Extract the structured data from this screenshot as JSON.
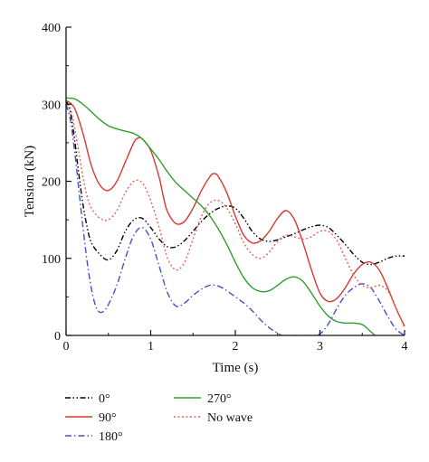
{
  "chart_data": {
    "type": "line",
    "title": "",
    "xlabel": "Time (s)",
    "ylabel": "Tension (kN)",
    "xlim": [
      0,
      4
    ],
    "ylim": [
      0,
      400
    ],
    "x_ticks": [
      "0",
      "1",
      "2",
      "3",
      "4"
    ],
    "y_ticks": [
      "0",
      "100",
      "200",
      "300",
      "400"
    ],
    "grid": false,
    "legend_position": "bottom",
    "series": [
      {
        "name": "0°",
        "color": "#000000",
        "dash": "dash-dot-dot",
        "x": [
          0,
          0.05,
          0.1,
          0.15,
          0.2,
          0.25,
          0.3,
          0.4,
          0.5,
          0.6,
          0.7,
          0.8,
          0.9,
          1.0,
          1.1,
          1.2,
          1.3,
          1.4,
          1.5,
          1.6,
          1.7,
          1.8,
          1.9,
          2.0,
          2.1,
          2.2,
          2.3,
          2.4,
          2.5,
          2.6,
          2.7,
          2.8,
          2.9,
          3.0,
          3.1,
          3.2,
          3.3,
          3.4,
          3.5,
          3.6,
          3.7,
          3.8,
          3.9,
          4.0
        ],
        "y": [
          305,
          290,
          255,
          210,
          170,
          140,
          120,
          105,
          98,
          110,
          135,
          150,
          152,
          140,
          125,
          115,
          115,
          123,
          135,
          148,
          158,
          165,
          168,
          165,
          152,
          135,
          125,
          122,
          124,
          128,
          132,
          137,
          141,
          143,
          140,
          130,
          118,
          105,
          95,
          92,
          95,
          100,
          103,
          103
        ]
      },
      {
        "name": "90°",
        "color": "#d43a2f",
        "dash": "solid",
        "x": [
          0,
          0.1,
          0.2,
          0.3,
          0.4,
          0.5,
          0.6,
          0.7,
          0.8,
          0.85,
          0.9,
          1.0,
          1.1,
          1.15,
          1.2,
          1.3,
          1.4,
          1.5,
          1.6,
          1.7,
          1.75,
          1.8,
          1.9,
          2.0,
          2.1,
          2.2,
          2.3,
          2.4,
          2.5,
          2.6,
          2.7,
          2.8,
          2.9,
          3.0,
          3.1,
          3.2,
          3.3,
          3.4,
          3.5,
          3.6,
          3.7,
          3.8,
          3.9,
          4.0
        ],
        "y": [
          305,
          295,
          262,
          220,
          195,
          188,
          200,
          225,
          250,
          256,
          255,
          240,
          205,
          180,
          160,
          145,
          148,
          165,
          188,
          206,
          210,
          206,
          185,
          155,
          130,
          120,
          123,
          135,
          152,
          162,
          150,
          120,
          85,
          55,
          44,
          48,
          62,
          80,
          92,
          95,
          85,
          62,
          35,
          12
        ]
      },
      {
        "name": "180°",
        "color": "#4b4ec4",
        "dash": "dash-dot",
        "x": [
          0,
          0.05,
          0.1,
          0.15,
          0.2,
          0.25,
          0.3,
          0.35,
          0.4,
          0.45,
          0.5,
          0.6,
          0.7,
          0.8,
          0.9,
          1.0,
          1.1,
          1.2,
          1.3,
          1.4,
          1.5,
          1.6,
          1.7,
          1.8,
          1.9,
          2.0,
          2.1,
          2.2,
          2.3,
          2.4,
          2.5,
          2.55,
          2.6,
          2.9,
          3.0,
          3.1,
          3.2,
          3.3,
          3.4,
          3.5,
          3.6,
          3.7,
          3.8,
          3.9,
          4.0
        ],
        "y": [
          300,
          280,
          240,
          190,
          140,
          95,
          60,
          38,
          30,
          32,
          40,
          65,
          100,
          130,
          140,
          125,
          90,
          55,
          38,
          42,
          52,
          60,
          65,
          64,
          58,
          50,
          42,
          32,
          20,
          10,
          3,
          0,
          0,
          0,
          2,
          15,
          35,
          52,
          62,
          67,
          62,
          45,
          25,
          8,
          0
        ]
      },
      {
        "name": "270°",
        "color": "#2e9e30",
        "dash": "solid",
        "x": [
          0,
          0.1,
          0.2,
          0.3,
          0.4,
          0.5,
          0.6,
          0.7,
          0.8,
          0.9,
          1.0,
          1.1,
          1.2,
          1.3,
          1.4,
          1.5,
          1.6,
          1.7,
          1.8,
          1.9,
          2.0,
          2.1,
          2.2,
          2.3,
          2.4,
          2.5,
          2.6,
          2.7,
          2.8,
          2.9,
          3.0,
          3.1,
          3.2,
          3.3,
          3.4,
          3.5,
          3.6,
          3.65
        ],
        "y": [
          308,
          307,
          300,
          290,
          280,
          272,
          268,
          265,
          262,
          255,
          242,
          228,
          212,
          198,
          188,
          178,
          168,
          155,
          138,
          118,
          95,
          75,
          62,
          57,
          58,
          65,
          73,
          76,
          70,
          55,
          38,
          25,
          18,
          16,
          16,
          14,
          5,
          0
        ]
      },
      {
        "name": "No wave",
        "color": "#e8605a",
        "dash": "dotted",
        "x": [
          0,
          0.05,
          0.1,
          0.15,
          0.2,
          0.25,
          0.3,
          0.4,
          0.5,
          0.6,
          0.7,
          0.8,
          0.9,
          1.0,
          1.1,
          1.2,
          1.3,
          1.4,
          1.5,
          1.6,
          1.7,
          1.8,
          1.9,
          2.0,
          2.1,
          2.2,
          2.3,
          2.4,
          2.5,
          2.6,
          2.7,
          2.8,
          2.9,
          3.0,
          3.1,
          3.2,
          3.3,
          3.4,
          3.5,
          3.6,
          3.7,
          3.8,
          3.9,
          4.0
        ],
        "y": [
          305,
          295,
          270,
          238,
          205,
          180,
          165,
          152,
          150,
          162,
          185,
          200,
          198,
          175,
          140,
          100,
          85,
          95,
          125,
          155,
          172,
          175,
          165,
          145,
          120,
          105,
          100,
          108,
          122,
          130,
          128,
          125,
          128,
          135,
          135,
          123,
          100,
          78,
          65,
          62,
          65,
          58,
          35,
          10
        ]
      }
    ]
  }
}
